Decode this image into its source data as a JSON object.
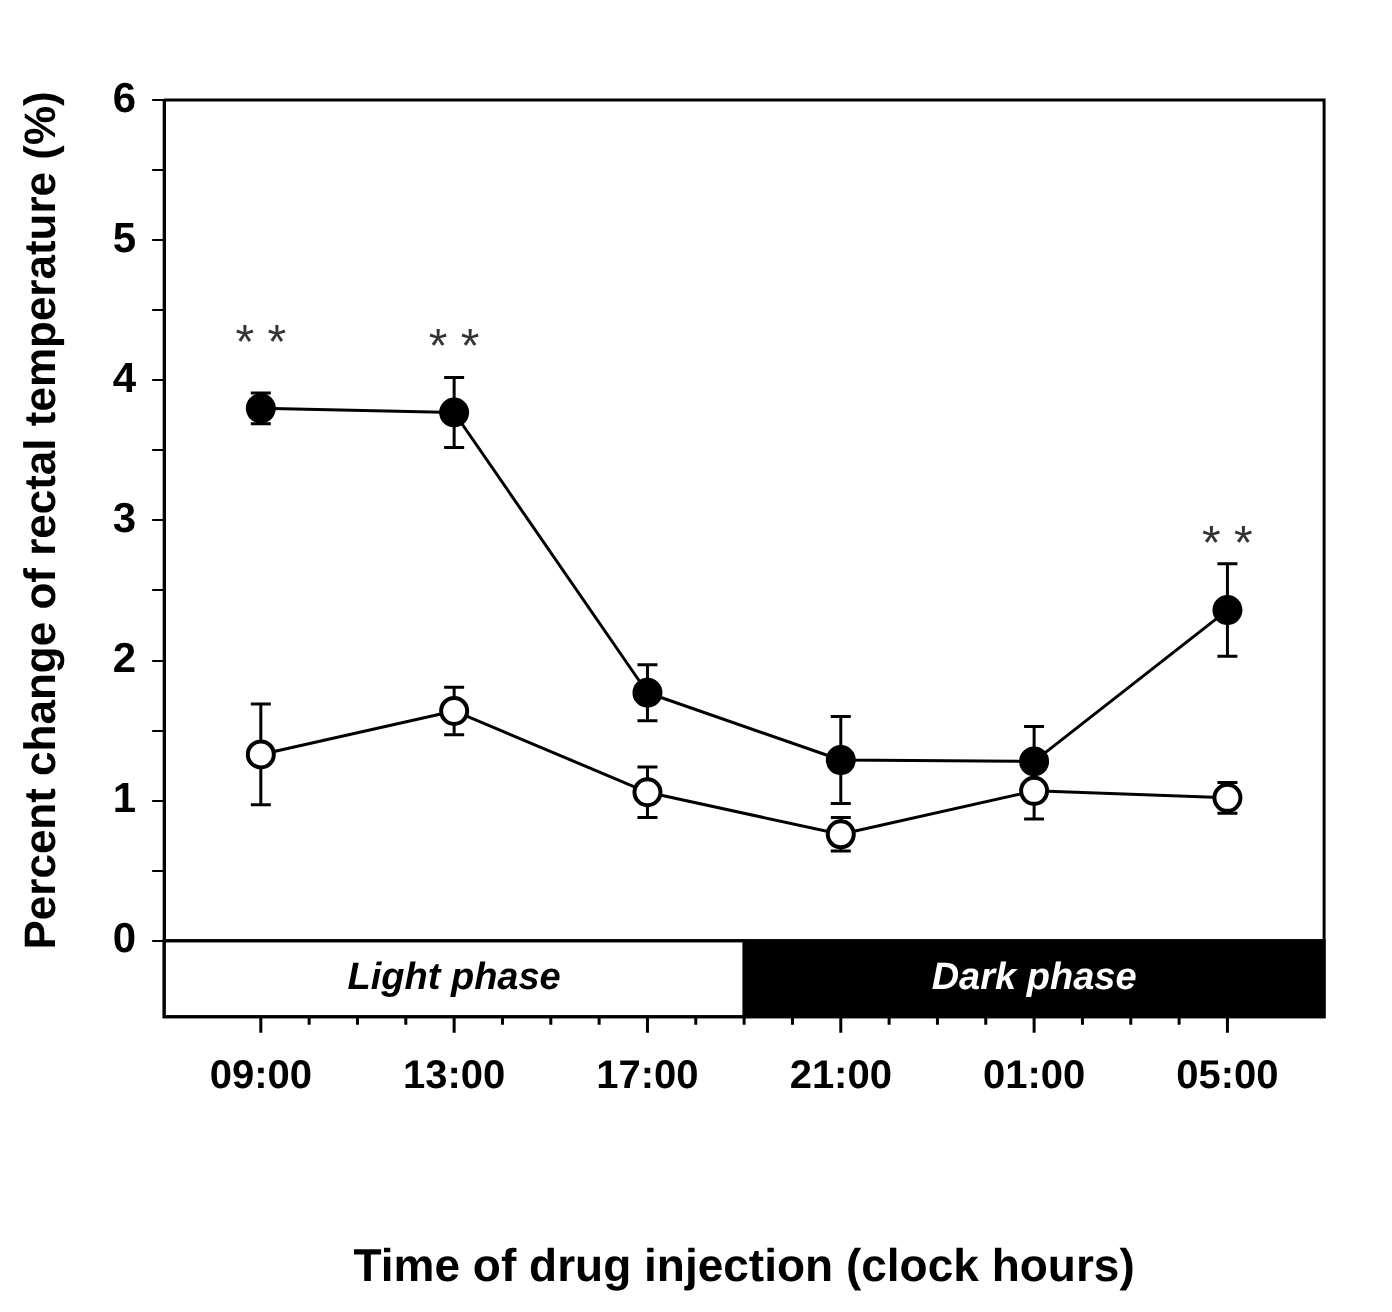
{
  "chart_data": {
    "type": "line",
    "xlabel": "Time of drug injection (clock hours)",
    "ylabel": "Percent change of rectal temperature (%)",
    "categories": [
      "09:00",
      "13:00",
      "17:00",
      "21:00",
      "01:00",
      "05:00"
    ],
    "series": [
      {
        "color": "#000000",
        "values": [
          3.8,
          3.77,
          1.77,
          1.29,
          1.28,
          2.36
        ],
        "errors": [
          0.11,
          0.25,
          0.2,
          0.31,
          0.25,
          0.33
        ]
      },
      {
        "color": "#ffffff",
        "values": [
          1.33,
          1.64,
          1.06,
          0.76,
          1.07,
          1.02
        ],
        "errors": [
          0.36,
          0.17,
          0.18,
          0.12,
          0.2,
          0.11
        ]
      }
    ],
    "ylim": [
      0,
      6
    ],
    "yticks": [
      0,
      {
        "value": 0.5,
        "label": null
      },
      1,
      {
        "value": 1.5,
        "label": null
      },
      2,
      {
        "value": 2.5,
        "label": null
      },
      3,
      {
        "value": 3.5,
        "label": null
      },
      4,
      {
        "value": 4.5,
        "label": null
      },
      5,
      {
        "value": 5.5,
        "label": null
      },
      6
    ],
    "annotations": [
      "Light phase",
      "Dark phase",
      {
        "text": "* *",
        "x": "09:00",
        "y": 3.8
      },
      {
        "text": "* *",
        "x": "13:00",
        "y": 3.77
      },
      {
        "text": "* *",
        "x": "05:00",
        "y": 2.36
      }
    ],
    "grid": false,
    "legend": false,
    "marker": "circle",
    "line_style": "solid"
  }
}
